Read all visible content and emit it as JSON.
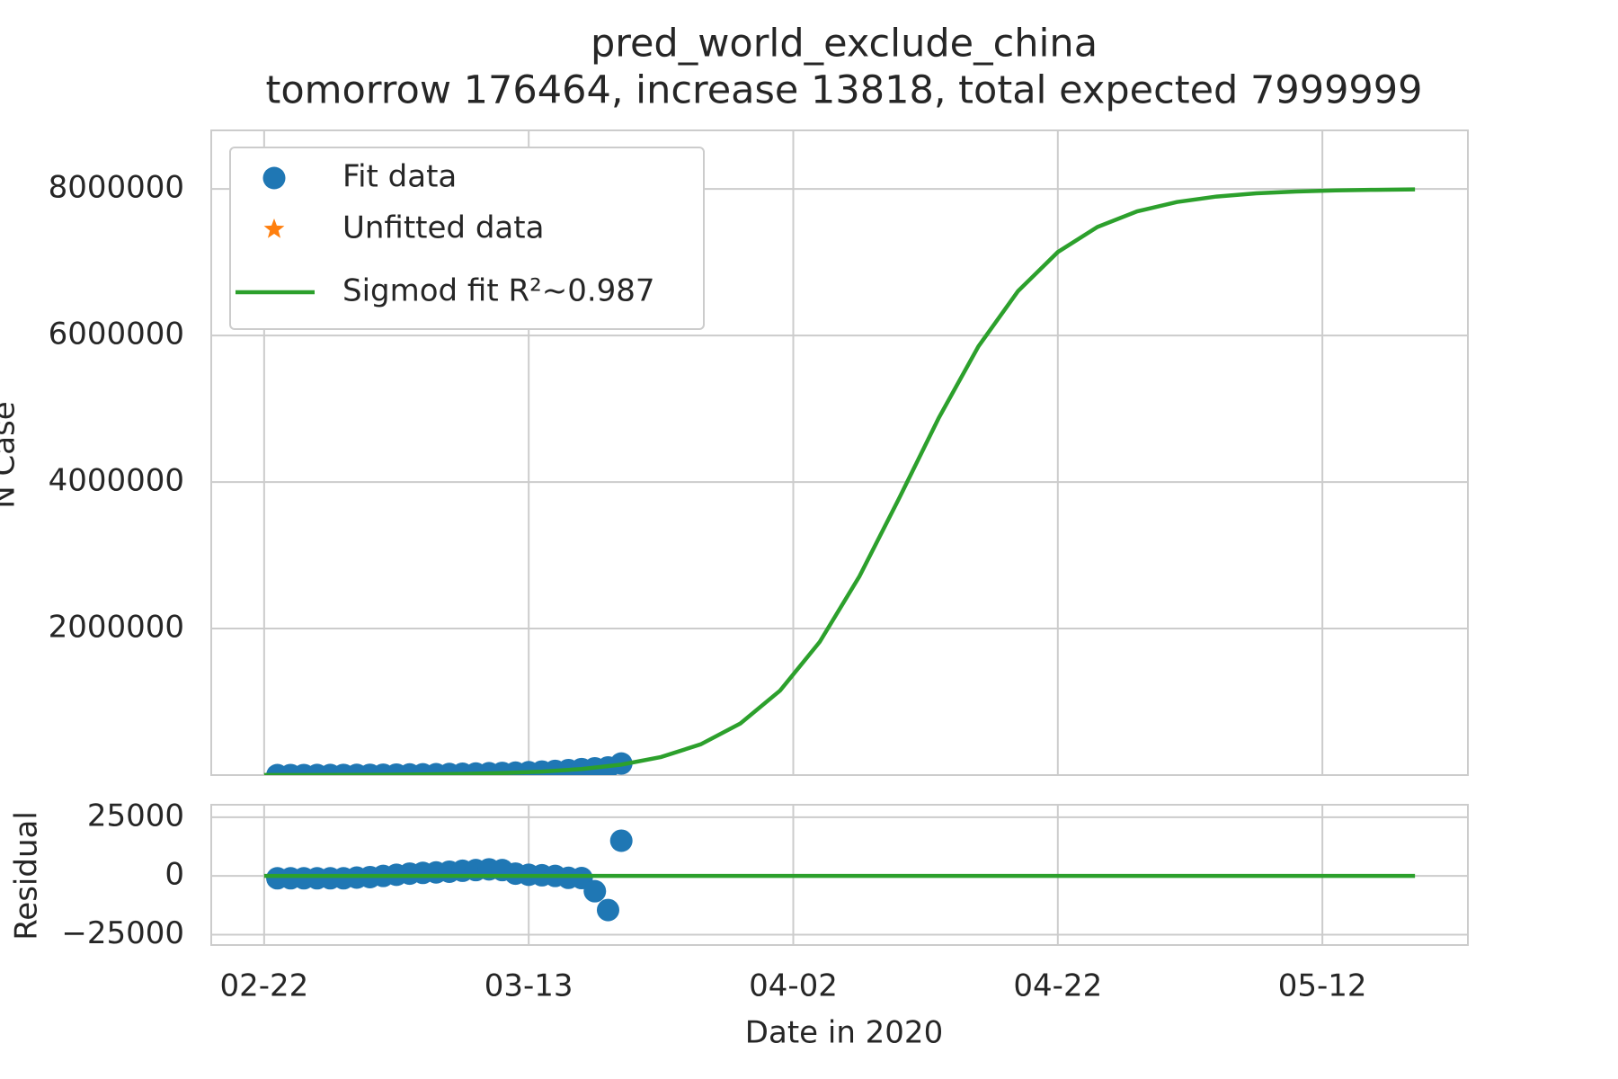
{
  "chart_data": [
    {
      "type": "line",
      "title": "pred_world_exclude_china",
      "subtitle": "tomorrow 176464, increase 13818, total expected 7999999",
      "ylabel": "N Case",
      "xlim": [
        "02-18",
        "05-23"
      ],
      "xticks": [
        "02-22",
        "03-13",
        "04-02",
        "04-22",
        "05-12"
      ],
      "ylim": [
        0,
        8800000
      ],
      "yticks": [
        2000000,
        4000000,
        6000000,
        8000000
      ],
      "grid": true,
      "legend": "upper left",
      "series": [
        {
          "name": "Fit data",
          "type": "scatter",
          "marker": "circle",
          "color": "#1f77b4",
          "x": [
            "02-23",
            "02-24",
            "02-25",
            "02-26",
            "02-27",
            "02-28",
            "02-29",
            "03-01",
            "03-02",
            "03-03",
            "03-04",
            "03-05",
            "03-06",
            "03-07",
            "03-08",
            "03-09",
            "03-10",
            "03-11",
            "03-12",
            "03-13",
            "03-14",
            "03-15",
            "03-16",
            "03-17",
            "03-18",
            "03-19",
            "03-20"
          ],
          "values": [
            170,
            408,
            695,
            1040,
            1456,
            1957,
            2860,
            3785,
            5160,
            6710,
            8475,
            10300,
            12330,
            14840,
            17890,
            21390,
            25540,
            29800,
            33850,
            40000,
            47800,
            57100,
            67800,
            81600,
            92500,
            104500,
            157900
          ]
        },
        {
          "name": "Unfitted data",
          "type": "scatter",
          "marker": "star",
          "color": "#ff7f0e",
          "x": [],
          "values": []
        },
        {
          "name": "Sigmod fit R²~0.987",
          "type": "line",
          "color": "#2ca02c",
          "x": [
            "02-22",
            "02-25",
            "02-28",
            "03-02",
            "03-05",
            "03-08",
            "03-11",
            "03-14",
            "03-17",
            "03-20",
            "03-23",
            "03-26",
            "03-29",
            "04-01",
            "04-04",
            "04-07",
            "04-10",
            "04-13",
            "04-16",
            "04-19",
            "04-22",
            "04-25",
            "04-28",
            "05-01",
            "05-04",
            "05-07",
            "05-10",
            "05-13",
            "05-16",
            "05-19"
          ],
          "values": [
            972,
            1695,
            2959,
            5165,
            9000,
            15690,
            27300,
            47530,
            82560,
            142900,
            246200,
            419500,
            704800,
            1152700,
            1818000,
            2712000,
            3777000,
            4875000,
            5852000,
            6608000,
            7139000,
            7482000,
            7695000,
            7822000,
            7897000,
            7941000,
            7966000,
            7980000,
            7989000,
            7994000
          ]
        }
      ]
    },
    {
      "type": "line",
      "ylabel": "Residual",
      "xlabel": "Date in 2020",
      "xlim": [
        "02-18",
        "05-23"
      ],
      "xticks": [
        "02-22",
        "03-13",
        "04-02",
        "04-22",
        "05-12"
      ],
      "ylim": [
        -29400,
        30300
      ],
      "yticks": [
        {
          "value": -25000,
          "label": "−25000"
        },
        0,
        25000
      ],
      "grid": true,
      "series": [
        {
          "type": "scatter",
          "marker": "circle",
          "color": "#1f77b4",
          "x": [
            "02-23",
            "02-24",
            "02-25",
            "02-26",
            "02-27",
            "02-28",
            "02-29",
            "03-01",
            "03-02",
            "03-03",
            "03-04",
            "03-05",
            "03-06",
            "03-07",
            "03-08",
            "03-09",
            "03-10",
            "03-11",
            "03-12",
            "03-13",
            "03-14",
            "03-15",
            "03-16",
            "03-17",
            "03-18",
            "03-19",
            "03-20"
          ],
          "values": [
            -1000,
            -1000,
            -1000,
            -1000,
            -1000,
            -1000,
            -700,
            -500,
            0,
            500,
            1000,
            1300,
            1500,
            1800,
            2200,
            2500,
            2800,
            2500,
            1000,
            500,
            300,
            0,
            -800,
            -900,
            -6500,
            -14500,
            15000
          ]
        },
        {
          "type": "line",
          "color": "#2ca02c",
          "x": [
            "02-22",
            "05-19"
          ],
          "values": [
            0,
            0
          ]
        }
      ]
    }
  ]
}
